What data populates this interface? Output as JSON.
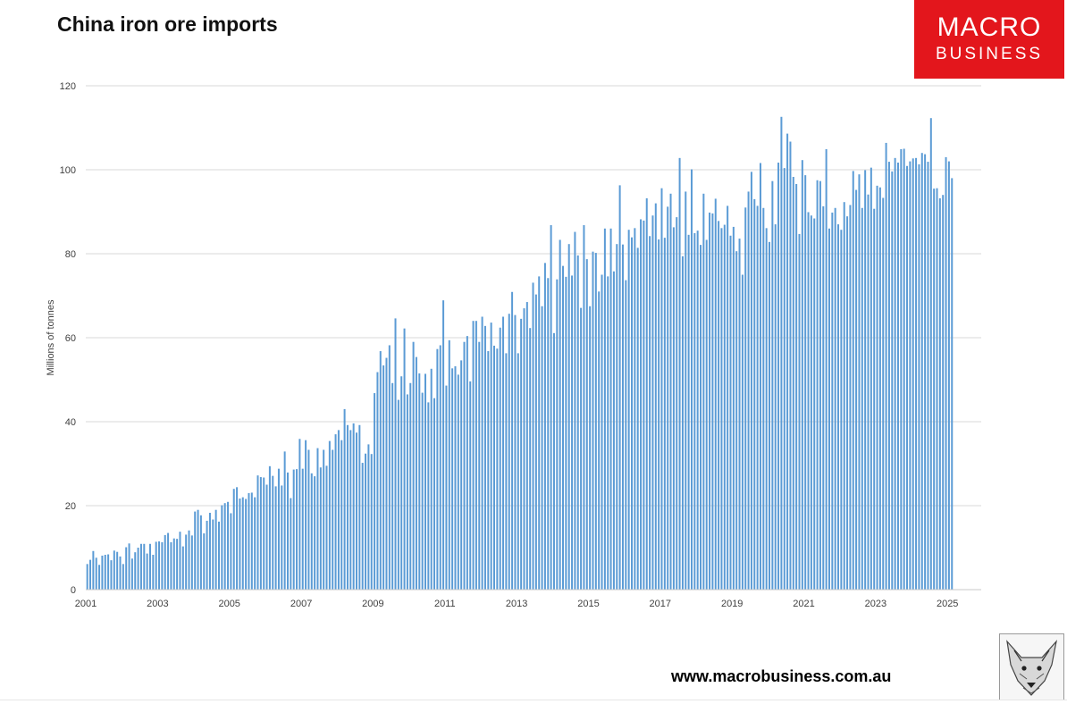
{
  "title": "China iron ore imports",
  "logo": {
    "line1": "MACRO",
    "line2": "BUSINESS",
    "color": "#e3161c"
  },
  "website": "www.macrobusiness.com.au",
  "chart_data": {
    "type": "bar",
    "title": "China iron ore imports",
    "xlabel": "",
    "ylabel": "Millions of tonnes",
    "ylim": [
      0,
      120
    ],
    "yticks": [
      0,
      20,
      40,
      60,
      80,
      100,
      120
    ],
    "xticks": [
      "2001",
      "2003",
      "2005",
      "2007",
      "2009",
      "2011",
      "2013",
      "2015",
      "2017",
      "2019",
      "2021",
      "2023",
      "2025"
    ],
    "x_start": "2001-01",
    "frequency": "monthly",
    "bar_color": "#5b9bd5",
    "grid": true,
    "series": [
      {
        "values": [
          6.1,
          7.1,
          9.2,
          7.6,
          5.9,
          8.1,
          8.3,
          8.4,
          7.0,
          9.3,
          9.0,
          7.9,
          6.1,
          10.1,
          11.0,
          7.4,
          8.9,
          10.0,
          10.9,
          10.9,
          8.6,
          10.9,
          8.3,
          11.4,
          11.5,
          11.3,
          13.0,
          13.5,
          11.3,
          12.2,
          12.1,
          13.8,
          10.3,
          13.1,
          14.1,
          12.9,
          18.6,
          19.0,
          17.7,
          13.4,
          16.4,
          18.3,
          16.7,
          19.0,
          16.2,
          20.1,
          20.6,
          20.9,
          18.2,
          24.0,
          24.4,
          21.7,
          22.0,
          21.6,
          23.0,
          23.1,
          22.0,
          27.2,
          26.8,
          26.7,
          25.0,
          29.4,
          27.1,
          24.6,
          28.8,
          24.8,
          32.9,
          27.9,
          21.8,
          28.6,
          28.7,
          35.9,
          28.8,
          35.6,
          33.3,
          27.7,
          27.0,
          33.7,
          29.1,
          33.3,
          29.5,
          35.4,
          33.3,
          37.0,
          38.0,
          35.6,
          43.0,
          39.2,
          38.0,
          39.6,
          37.4,
          39.2,
          30.2,
          32.4,
          34.6,
          32.3,
          46.8,
          51.8,
          56.8,
          53.4,
          55.2,
          58.2,
          49.2,
          64.6,
          45.2,
          50.8,
          62.2,
          46.5,
          49.2,
          59.0,
          55.4,
          51.5,
          46.9,
          51.4,
          44.6,
          52.6,
          45.6,
          57.3,
          58.2,
          68.9,
          48.6,
          59.4,
          52.7,
          53.2,
          51.2,
          54.6,
          59.0,
          60.4,
          49.6,
          64.0,
          64.0,
          59.0,
          65.0,
          62.8,
          56.8,
          63.6,
          58.1,
          57.4,
          62.4,
          65.0,
          56.3,
          65.7,
          70.9,
          65.4,
          56.3,
          64.5,
          67.0,
          68.5,
          62.3,
          73.1,
          70.3,
          74.6,
          67.5,
          77.8,
          74.2,
          86.8,
          61.1,
          73.9,
          83.3,
          77.1,
          74.5,
          82.3,
          74.8,
          85.2,
          79.6,
          67.1,
          86.8,
          78.7,
          67.5,
          80.5,
          80.2,
          71.0,
          75.0,
          86.0,
          74.6,
          86.0,
          75.8,
          82.3,
          96.3,
          82.2,
          73.7,
          85.7,
          83.9,
          86.1,
          81.4,
          88.2,
          87.9,
          93.2,
          84.2,
          89.1,
          92.0,
          83.4,
          95.6,
          83.8,
          91.2,
          94.3,
          86.3,
          88.7,
          102.8,
          79.4,
          94.8,
          84.5,
          100.1,
          84.9,
          85.5,
          82.1,
          94.3,
          83.3,
          89.8,
          89.6,
          93.1,
          87.8,
          86.1,
          86.9,
          91.4,
          84.3,
          86.4,
          80.6,
          83.6,
          75.0,
          91.0,
          94.8,
          99.5,
          93.0,
          91.4,
          101.6,
          90.9,
          86.1,
          82.8,
          97.3,
          87.0,
          101.7,
          112.6,
          100.4,
          108.6,
          106.7,
          98.3,
          96.6,
          84.7,
          102.3,
          98.7,
          89.9,
          89.1,
          88.4,
          97.5,
          97.3,
          91.3,
          104.9,
          86.0,
          89.8,
          90.9,
          87.0,
          85.7,
          92.3,
          88.9,
          91.6,
          99.7,
          95.2,
          98.9,
          90.9,
          99.9,
          94.1,
          100.5,
          90.7,
          96.2,
          95.8,
          93.3,
          106.4,
          101.9,
          99.6,
          102.8,
          101.7,
          104.9,
          105.0,
          100.9,
          102.0,
          102.7,
          102.8,
          101.3,
          104.0,
          103.7,
          101.9,
          112.3,
          95.5,
          95.6,
          93.2,
          94.0,
          103.0,
          102.0,
          98.0
        ]
      }
    ]
  }
}
